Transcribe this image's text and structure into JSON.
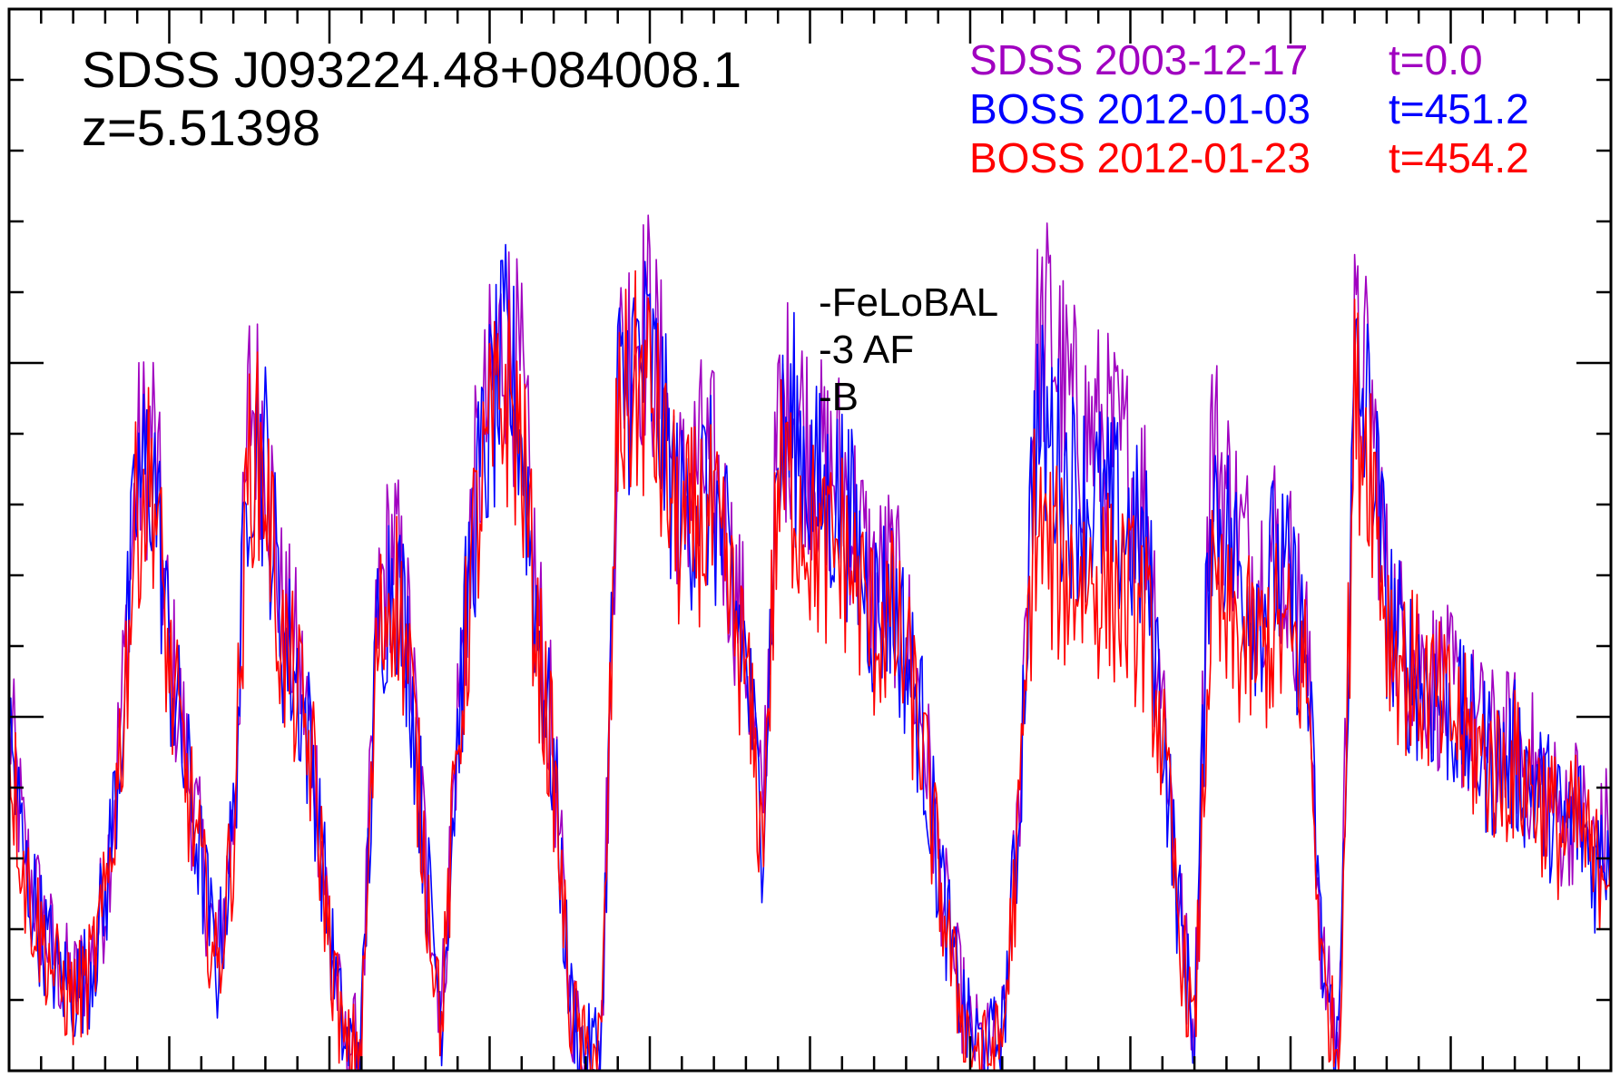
{
  "chart_data": {
    "type": "line",
    "title": "SDSS J093224.48+084008.1",
    "subtitle": "z=5.51398",
    "annotations": [
      "-FeLoBAL",
      "-3 AF",
      "-B"
    ],
    "legend_position": "top-right",
    "x_range": [
      0,
      100
    ],
    "y_range": [
      0,
      15
    ],
    "grid": false,
    "series": [
      {
        "name": "SDSS 2003-12-17",
        "time_label": "t=0.0",
        "color": "#a000c0",
        "x": [
          0,
          1,
          2,
          3,
          4,
          5,
          6,
          7,
          8,
          9,
          10,
          11,
          12,
          13,
          14,
          15,
          16,
          17,
          18,
          19,
          20,
          21,
          22,
          23,
          24,
          25,
          26,
          27,
          28,
          29,
          30,
          31,
          32,
          33,
          34,
          35,
          36,
          37,
          38,
          39,
          40,
          41,
          42,
          43,
          44,
          45,
          46,
          47,
          48,
          49,
          50,
          51,
          52,
          53,
          54,
          55,
          56,
          57,
          58,
          59,
          60,
          61,
          62,
          63,
          64,
          65,
          66,
          67,
          68,
          69,
          70,
          71,
          72,
          73,
          74,
          75,
          76,
          77,
          78,
          79,
          80,
          81,
          82,
          83,
          84,
          85,
          86,
          87,
          88,
          89,
          90,
          91,
          92,
          93,
          94,
          95,
          96,
          97,
          98,
          99,
          100
        ],
        "y": [
          5.0,
          3.0,
          2.2,
          1.5,
          1.2,
          1.5,
          2.5,
          5.0,
          8.5,
          9.0,
          6.0,
          4.5,
          3.0,
          1.5,
          3.5,
          9.5,
          9.0,
          6.5,
          5.8,
          4.5,
          2.0,
          0.3,
          0.5,
          6.5,
          7.5,
          6.0,
          3.0,
          0.8,
          5.0,
          8.0,
          9.5,
          10.5,
          9.5,
          6.5,
          4.5,
          1.0,
          0.2,
          0.5,
          9.8,
          10.5,
          10.5,
          9.2,
          8.0,
          8.6,
          8.4,
          7.2,
          6.0,
          3.5,
          9.0,
          9.6,
          8.8,
          8.4,
          8.5,
          7.6,
          6.8,
          7.0,
          6.2,
          5.0,
          3.0,
          1.5,
          0.5,
          0.3,
          0.5,
          3.5,
          10.0,
          10.5,
          9.5,
          9.0,
          9.0,
          8.8,
          8.5,
          8.0,
          5.5,
          2.5,
          0.5,
          9.0,
          8.2,
          7.4,
          7.0,
          7.5,
          7.0,
          6.0,
          1.5,
          0.3,
          10.0,
          9.5,
          6.8,
          6.0,
          5.8,
          5.5,
          5.3,
          5.0,
          4.7,
          4.5,
          4.6,
          4.3,
          4.0,
          3.5,
          3.8,
          3.0,
          3.5
        ]
      },
      {
        "name": "BOSS 2012-01-03",
        "time_label": "t=451.2",
        "color": "#0000ff",
        "x": [
          0,
          1,
          2,
          3,
          4,
          5,
          6,
          7,
          8,
          9,
          10,
          11,
          12,
          13,
          14,
          15,
          16,
          17,
          18,
          19,
          20,
          21,
          22,
          23,
          24,
          25,
          26,
          27,
          28,
          29,
          30,
          31,
          32,
          33,
          34,
          35,
          36,
          37,
          38,
          39,
          40,
          41,
          42,
          43,
          44,
          45,
          46,
          47,
          48,
          49,
          50,
          51,
          52,
          53,
          54,
          55,
          56,
          57,
          58,
          59,
          60,
          61,
          62,
          63,
          64,
          65,
          66,
          67,
          68,
          69,
          70,
          71,
          72,
          73,
          74,
          75,
          76,
          77,
          78,
          79,
          80,
          81,
          82,
          83,
          84,
          85,
          86,
          87,
          88,
          89,
          90,
          91,
          92,
          93,
          94,
          95,
          96,
          97,
          98,
          99,
          100
        ],
        "y": [
          4.8,
          2.8,
          2.0,
          1.4,
          1.1,
          1.4,
          2.4,
          4.8,
          8.2,
          8.6,
          5.8,
          4.3,
          2.9,
          1.4,
          3.4,
          9.0,
          8.6,
          6.2,
          5.5,
          4.3,
          1.9,
          0.3,
          0.5,
          6.2,
          7.2,
          5.8,
          2.9,
          0.8,
          4.8,
          7.7,
          9.1,
          10.0,
          9.1,
          6.2,
          4.3,
          1.0,
          0.2,
          0.5,
          9.4,
          10.0,
          10.0,
          8.8,
          7.7,
          8.2,
          8.0,
          6.9,
          5.8,
          3.4,
          8.6,
          9.1,
          8.4,
          8.0,
          8.1,
          7.3,
          6.5,
          6.7,
          5.9,
          4.8,
          2.9,
          1.4,
          0.5,
          0.3,
          0.5,
          3.4,
          9.1,
          8.9,
          8.3,
          8.1,
          8.0,
          7.8,
          7.6,
          7.2,
          5.0,
          2.3,
          0.5,
          8.2,
          7.6,
          6.9,
          6.6,
          7.1,
          6.7,
          5.8,
          1.4,
          0.3,
          9.6,
          9.1,
          6.6,
          5.8,
          5.6,
          5.3,
          5.1,
          4.8,
          4.5,
          4.3,
          4.4,
          4.1,
          3.8,
          3.4,
          3.6,
          2.9,
          3.4
        ]
      },
      {
        "name": "BOSS 2012-01-23",
        "time_label": "t=454.2",
        "color": "#ff0000",
        "x": [
          0,
          1,
          2,
          3,
          4,
          5,
          6,
          7,
          8,
          9,
          10,
          11,
          12,
          13,
          14,
          15,
          16,
          17,
          18,
          19,
          20,
          21,
          22,
          23,
          24,
          25,
          26,
          27,
          28,
          29,
          30,
          31,
          32,
          33,
          34,
          35,
          36,
          37,
          38,
          39,
          40,
          41,
          42,
          43,
          44,
          45,
          46,
          47,
          48,
          49,
          50,
          51,
          52,
          53,
          54,
          55,
          56,
          57,
          58,
          59,
          60,
          61,
          62,
          63,
          64,
          65,
          66,
          67,
          68,
          69,
          70,
          71,
          72,
          73,
          74,
          75,
          76,
          77,
          78,
          79,
          80,
          81,
          82,
          83,
          84,
          85,
          86,
          87,
          88,
          89,
          90,
          91,
          92,
          93,
          94,
          95,
          96,
          97,
          98,
          99,
          100
        ],
        "y": [
          4.7,
          2.7,
          1.9,
          1.3,
          1.0,
          1.3,
          2.3,
          4.7,
          8.0,
          8.4,
          5.6,
          4.2,
          2.8,
          1.3,
          3.3,
          8.8,
          8.4,
          6.0,
          5.3,
          4.2,
          1.8,
          0.2,
          0.4,
          6.0,
          7.0,
          5.6,
          2.8,
          0.7,
          4.6,
          7.4,
          8.8,
          9.6,
          8.8,
          6.0,
          4.2,
          0.9,
          0.2,
          0.4,
          9.2,
          9.6,
          9.6,
          8.4,
          7.4,
          7.8,
          7.6,
          6.6,
          5.6,
          3.2,
          8.3,
          8.2,
          7.6,
          7.2,
          7.4,
          6.8,
          6.2,
          6.4,
          5.7,
          4.6,
          2.8,
          1.3,
          0.4,
          0.2,
          0.4,
          3.2,
          7.8,
          7.2,
          7.0,
          7.0,
          6.9,
          6.8,
          6.6,
          6.3,
          4.6,
          2.1,
          0.4,
          6.6,
          6.2,
          6.0,
          5.9,
          6.2,
          6.0,
          5.6,
          1.3,
          0.2,
          9.4,
          8.8,
          6.4,
          5.7,
          5.5,
          5.2,
          5.0,
          4.7,
          4.4,
          4.2,
          4.3,
          4.0,
          3.7,
          3.3,
          3.5,
          2.8,
          3.3
        ]
      }
    ]
  }
}
